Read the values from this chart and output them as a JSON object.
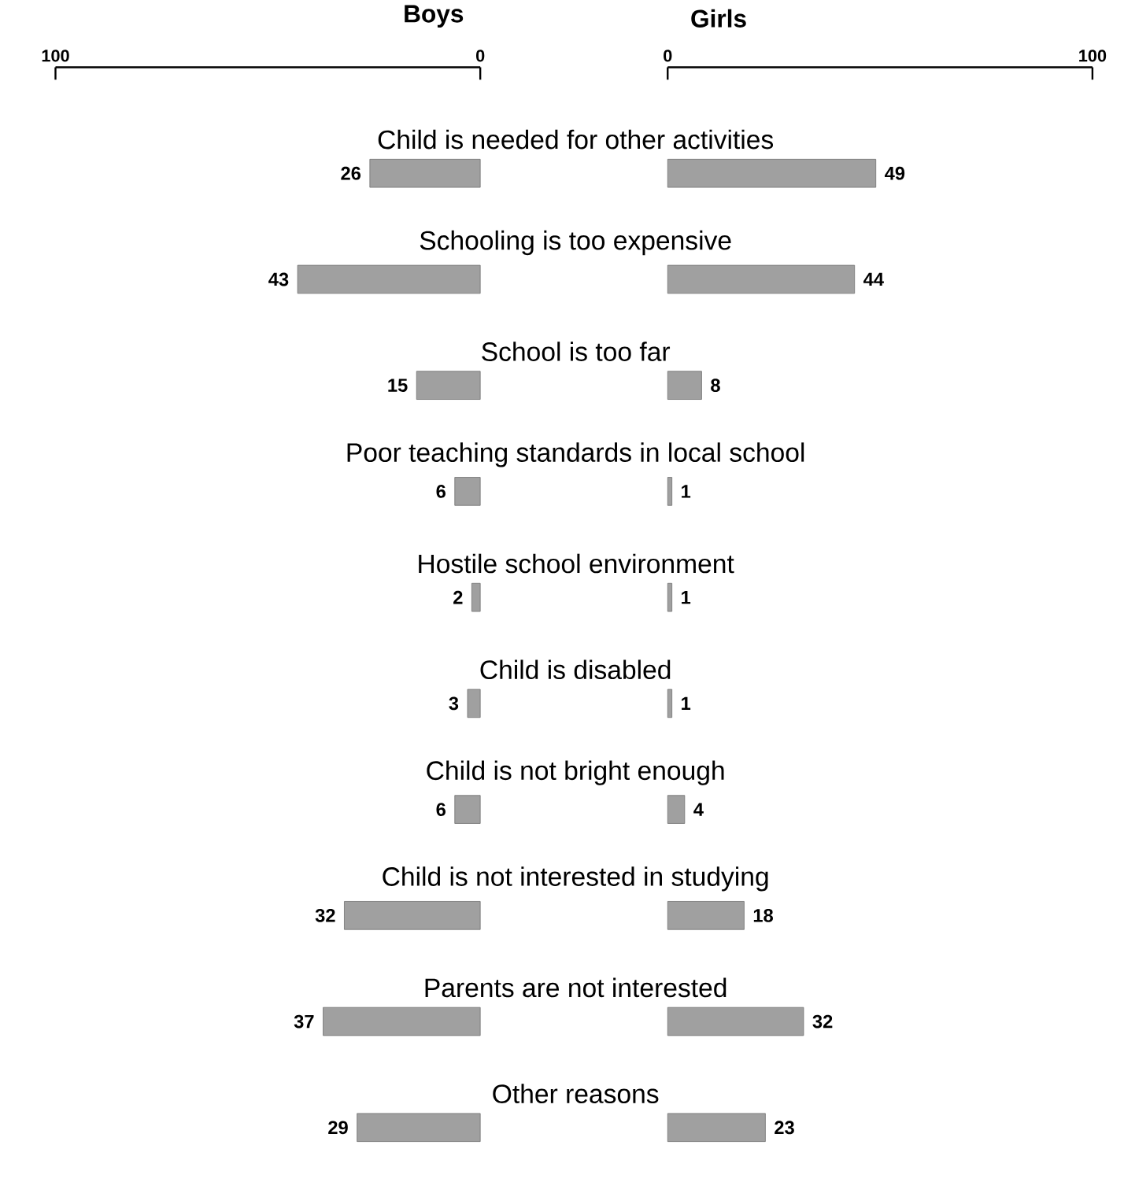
{
  "chart_data": [
    {
      "type": "bar",
      "orientation": "horizontal",
      "title": "Boys",
      "categories": [
        "Child is needed for other activities",
        "Schooling is too expensive",
        "School is too far",
        "Poor teaching standards in local school",
        "Hostile school environment",
        "Child is disabled",
        "Child is not bright enough",
        "Child is not interested in studying",
        "Parents are not interested",
        "Other reasons"
      ],
      "values": [
        26,
        43,
        15,
        6,
        2,
        3,
        6,
        32,
        37,
        29
      ],
      "color": "#a0a0a0",
      "xlim": [
        100,
        0
      ],
      "xticks": [
        100,
        0
      ],
      "data_labels": true
    },
    {
      "type": "bar",
      "orientation": "horizontal",
      "title": "Girls",
      "categories": [
        null,
        null,
        null,
        null,
        null,
        null,
        null,
        null,
        null,
        null
      ],
      "values": [
        49,
        44,
        8,
        1,
        1,
        1,
        4,
        18,
        32,
        23
      ],
      "color": "#a0a0a0",
      "xlim": [
        0,
        100
      ],
      "xticks": [
        0,
        100
      ],
      "data_labels": true
    }
  ]
}
